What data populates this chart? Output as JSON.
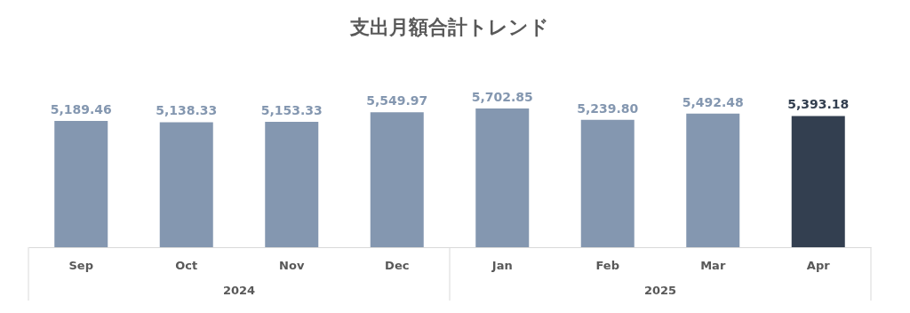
{
  "chart_data": {
    "type": "bar",
    "title": "支出月額合計トレンド",
    "categories": [
      "Sep",
      "Oct",
      "Nov",
      "Dec",
      "Jan",
      "Feb",
      "Mar",
      "Apr"
    ],
    "values": [
      5189.46,
      5138.33,
      5153.33,
      5549.97,
      5702.85,
      5239.8,
      5492.48,
      5393.18
    ],
    "colors": [
      "#8497b0",
      "#8497b0",
      "#8497b0",
      "#8497b0",
      "#8497b0",
      "#8497b0",
      "#8497b0",
      "#333f50"
    ],
    "value_labels": [
      "5,189.46",
      "5,138.33",
      "5,153.33",
      "5,549.97",
      "5,702.85",
      "5,239.80",
      "5,492.48",
      "5,393.18"
    ],
    "grid": false,
    "annotations": [
      "2024",
      "2025"
    ]
  }
}
